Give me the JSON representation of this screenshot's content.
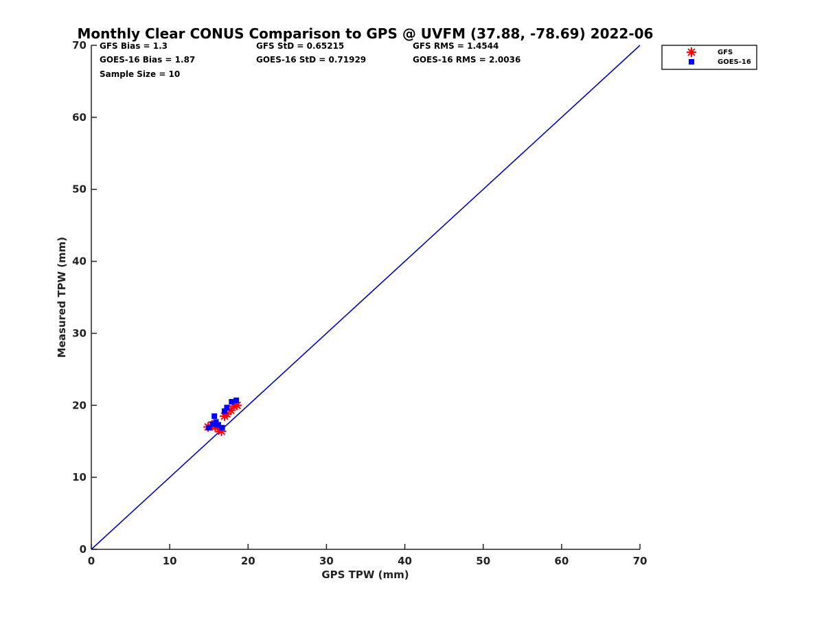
{
  "chart_data": {
    "type": "scatter",
    "title": "Monthly Clear CONUS Comparison to GPS @ UVFM (37.88, -78.69) 2022-06",
    "xlabel": "GPS TPW (mm)",
    "ylabel": "Measured TPW (mm)",
    "xlim": [
      0,
      70
    ],
    "ylim": [
      0,
      70
    ],
    "xticks": [
      "0",
      "10",
      "20",
      "30",
      "40",
      "50",
      "60",
      "70"
    ],
    "yticks": [
      "0",
      "10",
      "20",
      "30",
      "40",
      "50",
      "60",
      "70"
    ],
    "grid": false,
    "legend_position": "top-right",
    "reference_line": {
      "x": [
        0,
        70
      ],
      "y": [
        0,
        70
      ],
      "color": "#0000cc"
    },
    "stats": {
      "gfs_bias": "GFS Bias = 1.3",
      "goes_bias": "GOES-16 Bias = 1.87",
      "sample_size": "Sample Size = 10",
      "gfs_std": "GFS StD = 0.65215",
      "goes_std": "GOES-16 StD = 0.71929",
      "gfs_rms": "GFS RMS = 1.4544",
      "goes_rms": "GOES-16 RMS = 2.0036"
    },
    "series": [
      {
        "name": "GFS",
        "marker": "asterisk",
        "color": "#ff0000",
        "points": [
          [
            14.9,
            17.0
          ],
          [
            15.4,
            17.3
          ],
          [
            15.8,
            17.0
          ],
          [
            16.3,
            16.7
          ],
          [
            16.6,
            16.4
          ],
          [
            17.0,
            18.5
          ],
          [
            17.3,
            18.8
          ],
          [
            17.8,
            19.3
          ],
          [
            18.2,
            19.9
          ],
          [
            18.6,
            20.0
          ]
        ]
      },
      {
        "name": "GOES-16",
        "marker": "square",
        "color": "#0000ff",
        "points": [
          [
            15.0,
            16.9
          ],
          [
            15.5,
            17.4
          ],
          [
            15.7,
            18.5
          ],
          [
            15.9,
            17.7
          ],
          [
            16.2,
            17.3
          ],
          [
            16.7,
            16.9
          ],
          [
            17.0,
            19.2
          ],
          [
            17.3,
            19.7
          ],
          [
            17.9,
            20.5
          ],
          [
            18.5,
            20.7
          ]
        ]
      }
    ]
  }
}
